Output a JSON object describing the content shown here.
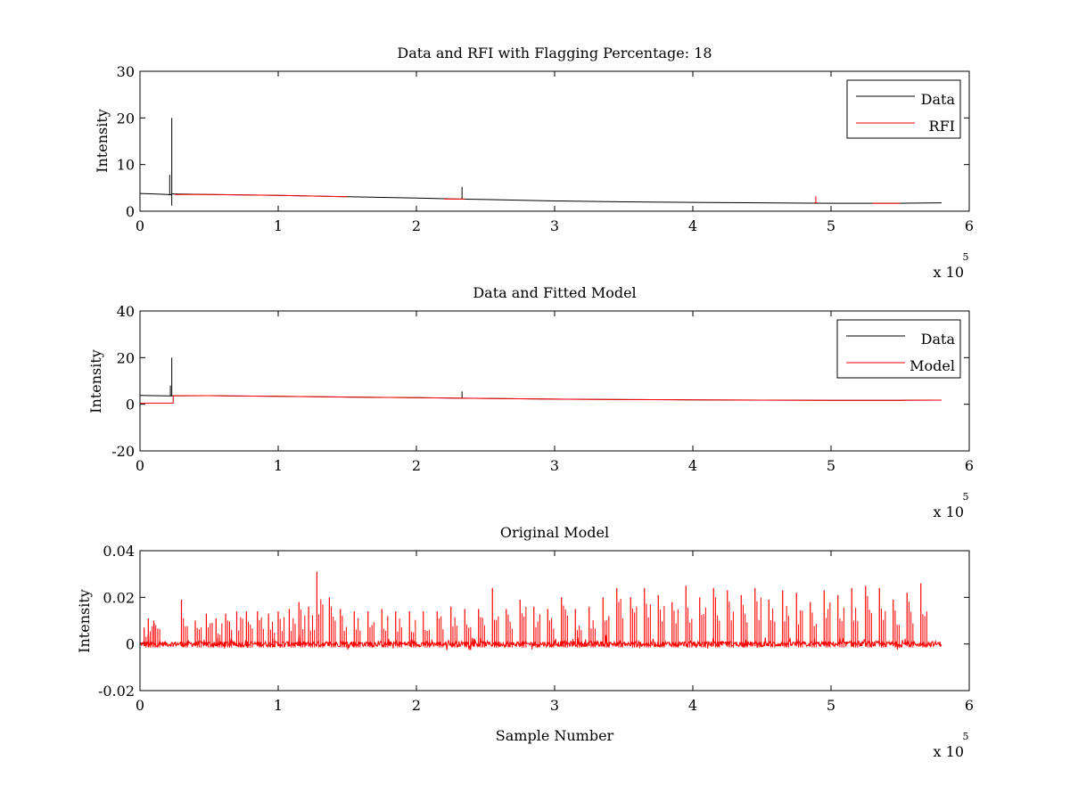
{
  "figure": {
    "colors": {
      "data": "#000000",
      "rfi": "#ff0000",
      "model": "#ff0000",
      "axis": "#000000",
      "background": "#ffffff"
    }
  },
  "chart_data": [
    {
      "type": "line",
      "title": "Data and RFI with Flagging Percentage: 18",
      "xlabel": "",
      "ylabel": "Intensity",
      "xlim": [
        0,
        6
      ],
      "ylim": [
        0,
        30
      ],
      "xticks": [
        "0",
        "1",
        "2",
        "3",
        "4",
        "5",
        "6"
      ],
      "yticks": [
        "0",
        "10",
        "20",
        "30"
      ],
      "x_multiplier": {
        "base": "x 10",
        "exponent": "5"
      },
      "legend": {
        "placement": "top-right",
        "entries": [
          "Data",
          "RFI"
        ]
      },
      "series": [
        {
          "name": "Data",
          "color": "#000000",
          "x": [
            0,
            0.1,
            0.2,
            0.22,
            0.23,
            0.24,
            0.5,
            1.0,
            1.5,
            2.0,
            2.32,
            2.5,
            3.0,
            3.5,
            4.0,
            4.5,
            5.0,
            5.5,
            5.8
          ],
          "y": [
            3.8,
            3.7,
            3.6,
            3.5,
            3.7,
            3.7,
            3.6,
            3.4,
            3.1,
            2.8,
            2.6,
            2.5,
            2.2,
            2.0,
            1.9,
            1.8,
            1.7,
            1.7,
            1.8
          ],
          "spikes": [
            {
              "x": 0.215,
              "low": 3.5,
              "high": 7.8
            },
            {
              "x": 0.23,
              "low": 1.2,
              "high": 20
            },
            {
              "x": 2.33,
              "low": 2.6,
              "high": 5.2
            }
          ]
        },
        {
          "name": "RFI",
          "color": "#ff0000",
          "segments": [
            {
              "x": [
                0.25,
                0.5,
                1.0,
                1.5
              ],
              "y": [
                3.6,
                3.6,
                3.4,
                3.1
              ]
            },
            {
              "x": [
                2.2,
                2.35
              ],
              "y": [
                2.6,
                2.6
              ]
            },
            {
              "x": [
                4.88,
                4.9
              ],
              "y": [
                1.8,
                1.8
              ]
            },
            {
              "x": [
                5.3,
                5.5
              ],
              "y": [
                1.7,
                1.7
              ]
            }
          ],
          "spikes": [
            {
              "x": 4.89,
              "low": 1.8,
              "high": 3.2
            }
          ]
        }
      ]
    },
    {
      "type": "line",
      "title": "Data and Fitted Model",
      "xlabel": "",
      "ylabel": "Intensity",
      "xlim": [
        0,
        6
      ],
      "ylim": [
        -20,
        40
      ],
      "xticks": [
        "0",
        "1",
        "2",
        "3",
        "4",
        "5",
        "6"
      ],
      "yticks": [
        "-20",
        "0",
        "20",
        "40"
      ],
      "x_multiplier": {
        "base": "x 10",
        "exponent": "5"
      },
      "legend": {
        "placement": "top-right",
        "entries": [
          "Data",
          "Model"
        ]
      },
      "series": [
        {
          "name": "Data",
          "color": "#000000",
          "x": [
            0,
            0.1,
            0.2,
            0.23,
            0.5,
            1.0,
            1.5,
            2.0,
            2.5,
            3.0,
            3.5,
            4.0,
            4.5,
            5.0,
            5.5,
            5.8
          ],
          "y": [
            3.8,
            3.7,
            3.6,
            3.6,
            3.7,
            3.4,
            3.1,
            2.8,
            2.5,
            2.2,
            2.0,
            1.9,
            1.8,
            1.7,
            1.7,
            1.8
          ],
          "spikes": [
            {
              "x": 0.22,
              "low": 3.5,
              "high": 8
            },
            {
              "x": 0.23,
              "low": 3.6,
              "high": 20
            },
            {
              "x": 2.33,
              "low": 2.6,
              "high": 5.5
            }
          ]
        },
        {
          "name": "Model",
          "color": "#ff0000",
          "x": [
            0,
            0.24,
            0.24,
            0.5,
            1.0,
            1.5,
            2.0,
            2.5,
            3.0,
            3.5,
            4.0,
            4.5,
            5.0,
            5.5,
            5.8
          ],
          "y": [
            0.5,
            0.5,
            3.7,
            3.7,
            3.4,
            3.1,
            2.8,
            2.5,
            2.2,
            2.0,
            1.9,
            1.8,
            1.7,
            1.7,
            1.8
          ]
        }
      ]
    },
    {
      "type": "line",
      "title": "Original Model",
      "xlabel": "Sample Number",
      "ylabel": "Intensity",
      "xlim": [
        0,
        6
      ],
      "ylim": [
        -0.02,
        0.04
      ],
      "xticks": [
        "0",
        "1",
        "2",
        "3",
        "4",
        "5",
        "6"
      ],
      "yticks": [
        "-0.02",
        "0",
        "0.02",
        "0.04"
      ],
      "x_multiplier": {
        "base": "x 10",
        "exponent": "5"
      },
      "legend": null,
      "series": [
        {
          "color": "#ff0000",
          "baseline": 0,
          "noise_amplitude": 0.0012,
          "x_end": 5.8,
          "peaks": [
            {
              "x": 0.03,
              "y": 0.007
            },
            {
              "x": 0.06,
              "y": 0.011
            },
            {
              "x": 0.1,
              "y": 0.01
            },
            {
              "x": 0.3,
              "y": 0.019
            },
            {
              "x": 0.4,
              "y": 0.01
            },
            {
              "x": 0.48,
              "y": 0.013
            },
            {
              "x": 0.55,
              "y": 0.011
            },
            {
              "x": 0.62,
              "y": 0.013
            },
            {
              "x": 0.7,
              "y": 0.014
            },
            {
              "x": 0.77,
              "y": 0.014
            },
            {
              "x": 0.85,
              "y": 0.014
            },
            {
              "x": 0.93,
              "y": 0.013
            },
            {
              "x": 1.0,
              "y": 0.014
            },
            {
              "x": 1.08,
              "y": 0.015
            },
            {
              "x": 1.15,
              "y": 0.018
            },
            {
              "x": 1.22,
              "y": 0.016
            },
            {
              "x": 1.28,
              "y": 0.031
            },
            {
              "x": 1.37,
              "y": 0.02
            },
            {
              "x": 1.45,
              "y": 0.015
            },
            {
              "x": 1.55,
              "y": 0.014
            },
            {
              "x": 1.65,
              "y": 0.014
            },
            {
              "x": 1.75,
              "y": 0.015
            },
            {
              "x": 1.85,
              "y": 0.014
            },
            {
              "x": 1.95,
              "y": 0.014
            },
            {
              "x": 2.05,
              "y": 0.014
            },
            {
              "x": 2.15,
              "y": 0.014
            },
            {
              "x": 2.25,
              "y": 0.016
            },
            {
              "x": 2.35,
              "y": 0.015
            },
            {
              "x": 2.45,
              "y": 0.015
            },
            {
              "x": 2.55,
              "y": 0.024
            },
            {
              "x": 2.65,
              "y": 0.015
            },
            {
              "x": 2.75,
              "y": 0.019
            },
            {
              "x": 2.85,
              "y": 0.016
            },
            {
              "x": 2.95,
              "y": 0.015
            },
            {
              "x": 3.05,
              "y": 0.02
            },
            {
              "x": 3.15,
              "y": 0.015
            },
            {
              "x": 3.25,
              "y": 0.016
            },
            {
              "x": 3.35,
              "y": 0.02
            },
            {
              "x": 3.45,
              "y": 0.024
            },
            {
              "x": 3.55,
              "y": 0.02
            },
            {
              "x": 3.65,
              "y": 0.024
            },
            {
              "x": 3.75,
              "y": 0.021
            },
            {
              "x": 3.85,
              "y": 0.018
            },
            {
              "x": 3.95,
              "y": 0.025
            },
            {
              "x": 4.05,
              "y": 0.02
            },
            {
              "x": 4.15,
              "y": 0.024
            },
            {
              "x": 4.25,
              "y": 0.023
            },
            {
              "x": 4.35,
              "y": 0.021
            },
            {
              "x": 4.45,
              "y": 0.024
            },
            {
              "x": 4.55,
              "y": 0.019
            },
            {
              "x": 4.65,
              "y": 0.023
            },
            {
              "x": 4.75,
              "y": 0.022
            },
            {
              "x": 4.85,
              "y": 0.018
            },
            {
              "x": 4.95,
              "y": 0.023
            },
            {
              "x": 5.05,
              "y": 0.021
            },
            {
              "x": 5.15,
              "y": 0.024
            },
            {
              "x": 5.25,
              "y": 0.025
            },
            {
              "x": 5.35,
              "y": 0.024
            },
            {
              "x": 5.45,
              "y": 0.019
            },
            {
              "x": 5.55,
              "y": 0.022
            },
            {
              "x": 5.65,
              "y": 0.026
            }
          ]
        }
      ]
    }
  ]
}
